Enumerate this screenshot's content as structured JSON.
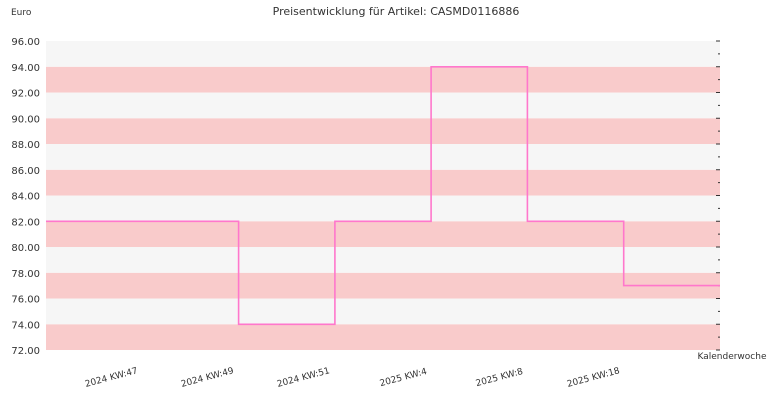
{
  "chart_data": {
    "type": "line",
    "title": "Preisentwicklung für Artikel: CASMD0116886",
    "ylabel": "Euro",
    "xlabel": "Kalenderwoche",
    "ylim": [
      72,
      96
    ],
    "y_ticks": [
      "72.00",
      "74.00",
      "76.00",
      "78.00",
      "80.00",
      "82.00",
      "84.00",
      "86.00",
      "88.00",
      "90.00",
      "92.00",
      "94.00",
      "96.00"
    ],
    "x_tick_labels": [
      "2024 KW:47",
      "2024 KW:49",
      "2024 KW:51",
      "2025 KW:4",
      "2025 KW:8",
      "2025 KW:18"
    ],
    "step": true,
    "series": [
      {
        "values": [
          82,
          82,
          74,
          82,
          94,
          82,
          77
        ]
      }
    ],
    "colors": {
      "line": "#ff77cc",
      "band_a": "#f9cbcb",
      "band_b": "#f6f6f6"
    }
  }
}
